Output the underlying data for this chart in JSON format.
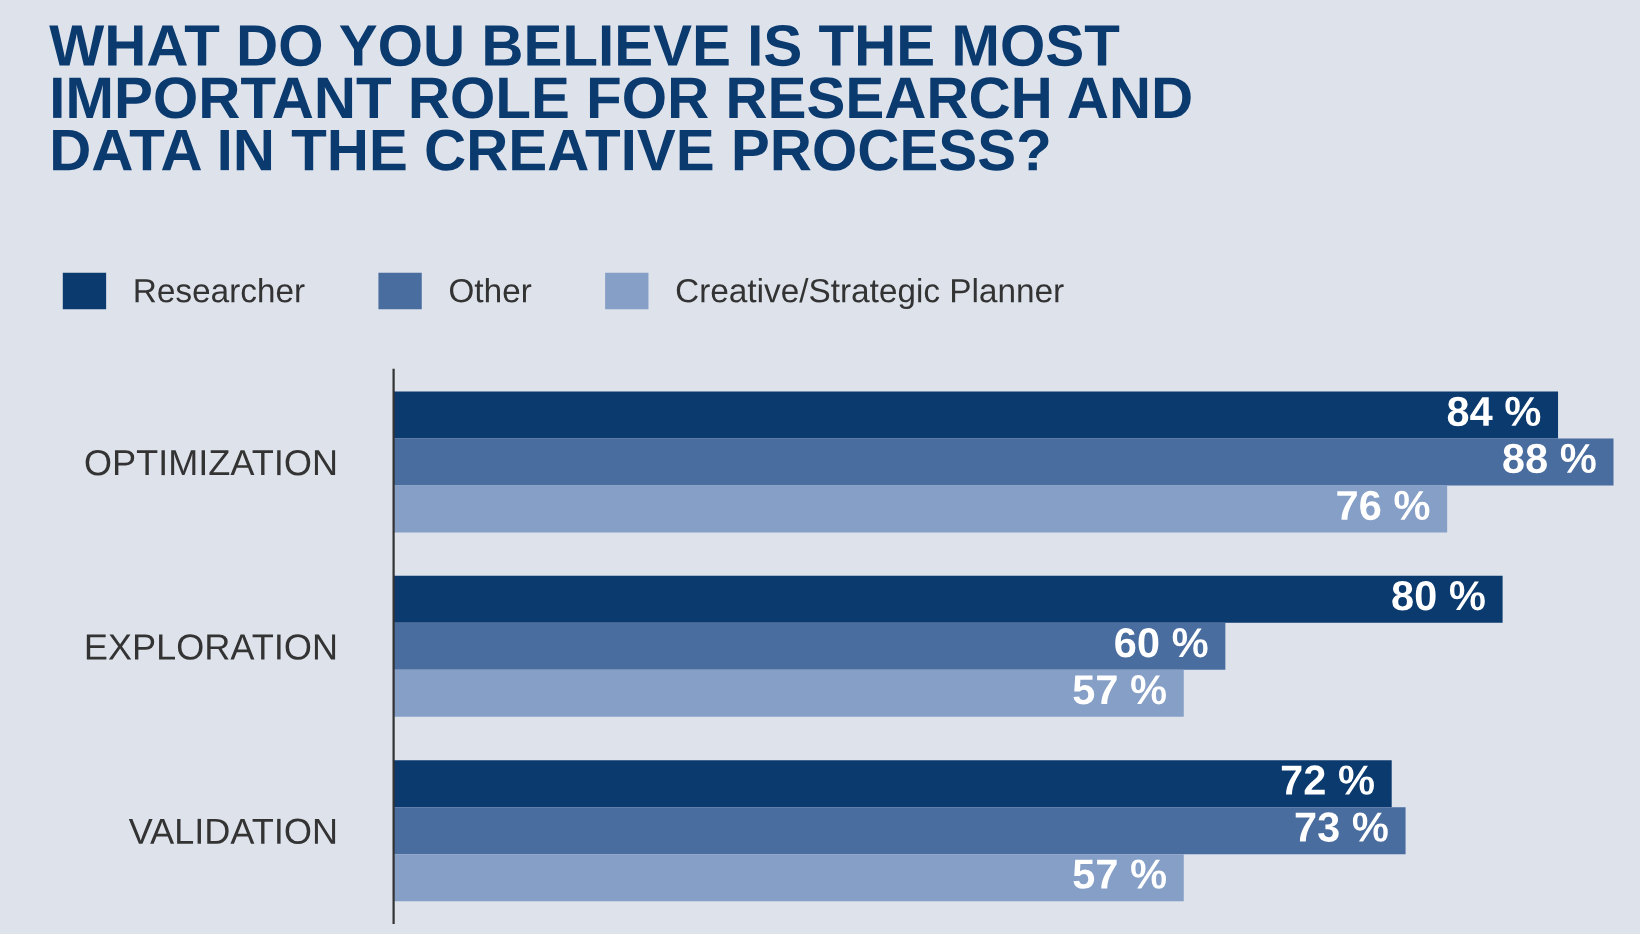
{
  "chart_data": {
    "type": "bar",
    "orientation": "horizontal",
    "title": "WHAT DO YOU BELIEVE IS THE MOST\nIMPORTANT ROLE FOR RESEARCH AND\nDATA IN THE CREATIVE PROCESS?",
    "categories": [
      "OPTIMIZATION",
      "EXPLORATION",
      "VALIDATION"
    ],
    "series": [
      {
        "name": "Researcher",
        "color": "#0b3a6f",
        "values": [
          84,
          80,
          72
        ],
        "value_labels": [
          "84 %",
          "80 %",
          "72 %"
        ]
      },
      {
        "name": "Other",
        "color": "#4a6d9f",
        "values": [
          88,
          60,
          73
        ],
        "value_labels": [
          "88 %",
          "60 %",
          "73 %"
        ]
      },
      {
        "name": "Creative/Strategic Planner",
        "color": "#869fc7",
        "values": [
          76,
          57,
          57
        ],
        "value_labels": [
          "76 %",
          "57 %",
          "57 %"
        ]
      }
    ],
    "legend": "top left",
    "grid": false
  }
}
